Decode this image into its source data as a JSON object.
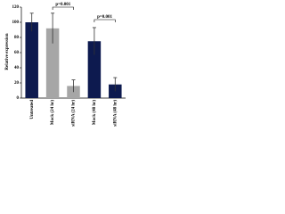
{
  "chart_data": {
    "type": "bar",
    "y_label": "Relative expression",
    "categories": [
      "Untreated",
      "Mock (24 hr)",
      "siRNA (24 hr)",
      "Mock (48 hr)",
      "siRNA (48 hr)"
    ],
    "values": [
      100,
      92,
      16,
      75,
      18
    ],
    "errors": [
      12,
      20,
      8,
      18,
      9
    ],
    "colors": [
      "#0d1a4f",
      "#a6a6a6",
      "#a6a6a6",
      "#0d1a4f",
      "#0d1a4f"
    ],
    "ylim": [
      0,
      120
    ],
    "yticks": [
      0,
      20,
      40,
      60,
      80,
      100,
      120
    ],
    "annotations": [
      "p=0.001",
      "p=0.001"
    ]
  }
}
